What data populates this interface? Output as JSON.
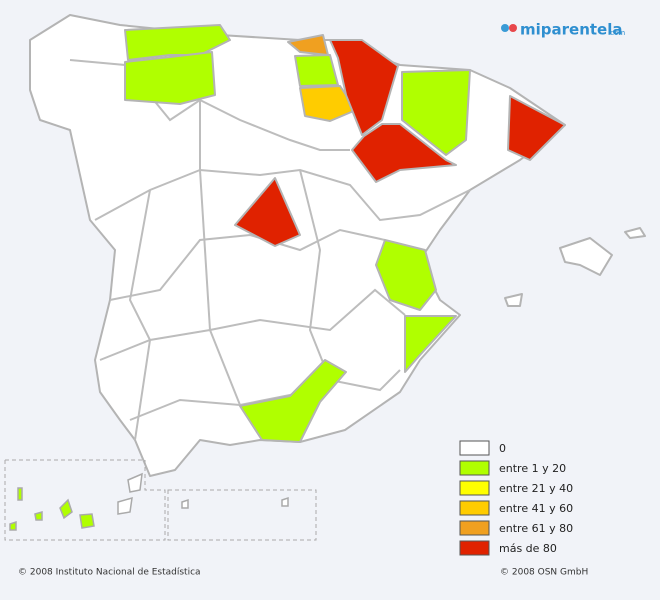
{
  "logo": {
    "name": "miparentela",
    "suffix": ".com"
  },
  "legend": {
    "items": [
      {
        "label": "0",
        "color": "#ffffff"
      },
      {
        "label": "entre 1 y 20",
        "color": "#b0ff00"
      },
      {
        "label": "entre 21 y 40",
        "color": "#ffff00"
      },
      {
        "label": "entre 41 y 60",
        "color": "#ffcc00"
      },
      {
        "label": "entre 61 y 80",
        "color": "#f0a020"
      },
      {
        "label": "más de 80",
        "color": "#e02200"
      }
    ]
  },
  "footer": {
    "left": "© 2008 Instituto Nacional de Estadística",
    "right": "© 2008 OSN GmbH"
  }
}
